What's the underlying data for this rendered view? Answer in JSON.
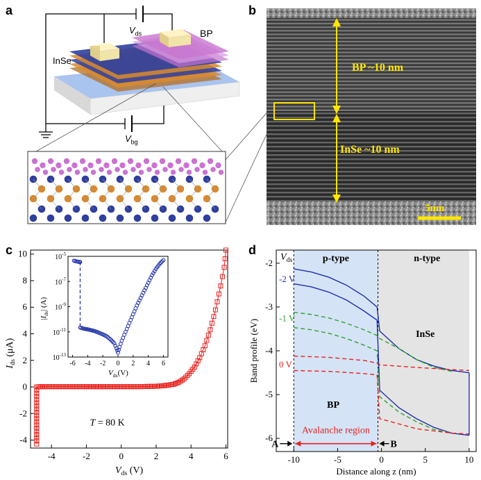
{
  "figure": {
    "panels": {
      "a": "a",
      "b": "b",
      "c": "c",
      "d": "d"
    }
  },
  "panel_a": {
    "vds_label": "V",
    "vds_sub": "ds",
    "vbg_label": "V",
    "vbg_sub": "bg",
    "bp_label": "BP",
    "inse_label": "InSe",
    "colors": {
      "bp_atom": "#c874d0",
      "inse_blue": "#2f3f9e",
      "inse_orange": "#d9892e",
      "substrate": "#a9c4ee",
      "electrode": "#f1e4a8"
    }
  },
  "panel_b": {
    "bp_label": "BP ~10 nm",
    "inse_label": "InSe ~10 nm",
    "scale_label": "5nm",
    "colors": {
      "annotation": "#ffe600"
    }
  },
  "chart_data": [
    {
      "panel": "c",
      "type": "line",
      "title": "",
      "xlabel": "V",
      "xlabel_sub": "ds",
      "xlabel_unit": " (V)",
      "ylabel": "I",
      "ylabel_sub": "ds",
      "ylabel_unit": " (μA)",
      "xlim": [
        -5.2,
        6.1
      ],
      "ylim": [
        -4.6,
        10.3
      ],
      "xticks": [
        -4,
        -2,
        0,
        2,
        4,
        6
      ],
      "yticks": [
        -4,
        -2,
        0,
        2,
        4,
        6,
        8,
        10
      ],
      "annotation": "T = 80 K",
      "series": [
        {
          "name": "Ids",
          "marker": "square",
          "color": "#e8201c",
          "x": [
            -4.85,
            -4.85,
            -4.6,
            -4.0,
            -3.0,
            -2.0,
            -1.0,
            0.0,
            1.0,
            2.0,
            2.5,
            3.0,
            3.3,
            3.6,
            3.9,
            4.2,
            4.5,
            4.8,
            5.1,
            5.4,
            5.7,
            5.9,
            6.0
          ],
          "y": [
            -4.3,
            0.0,
            0.02,
            0.02,
            0.02,
            0.02,
            0.02,
            0.02,
            0.02,
            0.05,
            0.1,
            0.2,
            0.35,
            0.6,
            1.0,
            1.5,
            2.2,
            3.1,
            4.3,
            5.8,
            7.6,
            9.0,
            10.3
          ]
        }
      ],
      "inset": {
        "xlabel": "V",
        "xlabel_sub": "ds",
        "xlabel_unit": "(V)",
        "ylabel": "|I",
        "ylabel_sub": "ds",
        "ylabel_unit": "| (A)",
        "xlim": [
          -6.6,
          6.6
        ],
        "ylim_exp": [
          -13,
          -5
        ],
        "xticks": [
          -6,
          -4,
          -2,
          0,
          2,
          4,
          6
        ],
        "yticks_exp": [
          -5,
          -7,
          -9,
          -11,
          -13
        ],
        "ytick_base": "10",
        "series": [
          {
            "name": "|Ids|",
            "marker": "circle",
            "color": "#1c2fa8",
            "x": [
              -5.8,
              -5.5,
              -5.1,
              -5.0,
              -5.0,
              -4.5,
              -4.0,
              -3.0,
              -2.0,
              -1.5,
              -1.0,
              -0.5,
              -0.2,
              0.0,
              0.2,
              0.5,
              1.0,
              1.5,
              2.0,
              2.5,
              3.0,
              3.5,
              4.0,
              4.5,
              5.0,
              5.5,
              6.0
            ],
            "log_y": [
              -5.35,
              -5.4,
              -5.45,
              -5.45,
              -10.65,
              -10.75,
              -10.8,
              -10.95,
              -11.2,
              -11.35,
              -11.6,
              -11.9,
              -12.3,
              -12.65,
              -12.2,
              -11.7,
              -11.0,
              -10.3,
              -9.6,
              -8.9,
              -8.3,
              -7.7,
              -7.1,
              -6.5,
              -6.0,
              -5.6,
              -5.3
            ]
          }
        ]
      }
    },
    {
      "panel": "d",
      "type": "line",
      "title": "",
      "xlabel": "Distance along z (nm)",
      "ylabel": "Band profile (eV)",
      "xlim": [
        -12.0,
        10.8
      ],
      "ylim": [
        -6.3,
        -1.7
      ],
      "xticks": [
        -10,
        -5,
        0,
        5,
        10
      ],
      "yticks": [
        -2,
        -3,
        -4,
        -5,
        -6
      ],
      "region_labels": {
        "p": "p-type",
        "n": "n-type",
        "bp": "BP",
        "inse": "InSe",
        "avalanche": "Avalanche region",
        "A": "A",
        "B": "B"
      },
      "vds_header": "V",
      "vds_header_sub": "ds",
      "bias_labels": [
        {
          "text": "-2 V",
          "color": "#1c2fa8",
          "y": -2.35
        },
        {
          "text": "-1 V",
          "color": "#2ea32e",
          "y": -3.25
        },
        {
          "text": "0 V",
          "color": "#e8201c",
          "y": -4.3
        }
      ],
      "colors": {
        "p_region": "#d5e3f6",
        "n_region": "#e4e4e4"
      },
      "series": [
        {
          "name": "-2 V upper",
          "style": "solid",
          "color": "#1c2fa8",
          "x": [
            -10,
            -8,
            -6,
            -4,
            -2,
            -0.5,
            -0.2,
            2,
            4,
            6,
            8,
            10
          ],
          "y": [
            -2.13,
            -2.2,
            -2.32,
            -2.5,
            -2.75,
            -3.0,
            -3.55,
            -3.95,
            -4.2,
            -4.35,
            -4.45,
            -4.5
          ]
        },
        {
          "name": "-2 V lower",
          "style": "solid",
          "color": "#1c2fa8",
          "x": [
            -10,
            -8,
            -6,
            -4,
            -2,
            -0.5,
            -0.2,
            2,
            4,
            6,
            8,
            10
          ],
          "y": [
            -2.47,
            -2.54,
            -2.66,
            -2.84,
            -3.09,
            -3.3,
            -4.9,
            -5.3,
            -5.55,
            -5.75,
            -5.88,
            -5.93
          ]
        },
        {
          "name": "-1 V upper",
          "style": "dashed",
          "color": "#2ea32e",
          "x": [
            -10,
            -8,
            -6,
            -4,
            -2,
            -0.5,
            -0.2,
            2,
            4,
            6,
            8
          ],
          "y": [
            -3.12,
            -3.17,
            -3.25,
            -3.37,
            -3.52,
            -3.65,
            -3.72,
            -3.95,
            -4.2,
            -4.38,
            -4.47
          ]
        },
        {
          "name": "-1 V lower",
          "style": "dashed",
          "color": "#2ea32e",
          "x": [
            -10,
            -8,
            -6,
            -4,
            -2,
            -0.5,
            -0.2,
            2,
            4,
            6,
            8
          ],
          "y": [
            -3.47,
            -3.52,
            -3.6,
            -3.72,
            -3.87,
            -4.0,
            -5.05,
            -5.4,
            -5.62,
            -5.8,
            -5.88
          ]
        },
        {
          "name": "0 V upper",
          "style": "dashed",
          "color": "#e8201c",
          "x": [
            -10,
            -6,
            -2,
            -0.5,
            -0.2,
            4,
            8,
            10
          ],
          "y": [
            -4.12,
            -4.15,
            -4.22,
            -4.28,
            -4.32,
            -4.38,
            -4.43,
            -4.45
          ]
        },
        {
          "name": "0 V lower",
          "style": "dashed",
          "color": "#e8201c",
          "x": [
            -10,
            -6,
            -2,
            -0.5,
            -0.2,
            4,
            8,
            10
          ],
          "y": [
            -4.45,
            -4.47,
            -4.52,
            -4.55,
            -5.55,
            -5.78,
            -5.88,
            -5.9
          ]
        }
      ]
    }
  ]
}
